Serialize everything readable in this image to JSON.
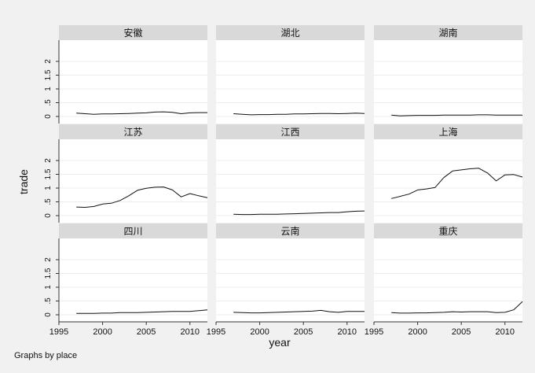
{
  "chart_data": {
    "type": "line",
    "layout": "small-multiples 3x3",
    "xlabel": "year",
    "ylabel": "trade",
    "xlim": [
      1995,
      2012
    ],
    "ylim": [
      0,
      2
    ],
    "xticks": [
      "1995",
      "2000",
      "2005",
      "2010"
    ],
    "yticks": [
      "0",
      ".5",
      "1",
      "1.5",
      "2"
    ],
    "grid": true,
    "line_color": "#111111",
    "strip_color": "#d9d9d9",
    "plot_background": "#ffffff",
    "note": "Graphs by place",
    "x": [
      1997,
      1998,
      1999,
      2000,
      2001,
      2002,
      2003,
      2004,
      2005,
      2006,
      2007,
      2008,
      2009,
      2010,
      2011,
      2012
    ],
    "panels": [
      {
        "name": "安徽",
        "values": [
          0.12,
          0.1,
          0.08,
          0.09,
          0.09,
          0.1,
          0.11,
          0.12,
          0.13,
          0.16,
          0.17,
          0.15,
          0.1,
          0.13,
          0.14,
          0.14
        ]
      },
      {
        "name": "湖北",
        "values": [
          0.1,
          0.08,
          0.06,
          0.07,
          0.07,
          0.08,
          0.08,
          0.09,
          0.09,
          0.1,
          0.11,
          0.11,
          0.1,
          0.11,
          0.12,
          0.11
        ]
      },
      {
        "name": "湖南",
        "values": [
          0.05,
          0.02,
          0.03,
          0.04,
          0.04,
          0.04,
          0.05,
          0.05,
          0.05,
          0.05,
          0.06,
          0.06,
          0.05,
          0.05,
          0.05,
          0.05
        ]
      },
      {
        "name": "江苏",
        "values": [
          0.31,
          0.3,
          0.33,
          0.42,
          0.45,
          0.55,
          0.72,
          0.92,
          0.99,
          1.03,
          1.04,
          0.93,
          0.68,
          0.8,
          0.72,
          0.65
        ]
      },
      {
        "name": "江西",
        "values": [
          0.05,
          0.04,
          0.04,
          0.05,
          0.05,
          0.05,
          0.06,
          0.07,
          0.08,
          0.09,
          0.1,
          0.11,
          0.11,
          0.14,
          0.16,
          0.17
        ]
      },
      {
        "name": "上海",
        "values": [
          0.62,
          0.7,
          0.78,
          0.93,
          0.97,
          1.02,
          1.38,
          1.62,
          1.66,
          1.7,
          1.72,
          1.55,
          1.26,
          1.48,
          1.49,
          1.4
        ]
      },
      {
        "name": "四川",
        "values": [
          0.05,
          0.05,
          0.05,
          0.06,
          0.06,
          0.08,
          0.08,
          0.08,
          0.09,
          0.1,
          0.11,
          0.12,
          0.12,
          0.12,
          0.15,
          0.18
        ]
      },
      {
        "name": "云南",
        "values": [
          0.09,
          0.08,
          0.07,
          0.07,
          0.08,
          0.09,
          0.1,
          0.11,
          0.12,
          0.13,
          0.16,
          0.11,
          0.09,
          0.12,
          0.12,
          0.12
        ]
      },
      {
        "name": "重庆",
        "values": [
          0.08,
          0.06,
          0.06,
          0.07,
          0.07,
          0.08,
          0.09,
          0.11,
          0.1,
          0.11,
          0.11,
          0.11,
          0.08,
          0.09,
          0.18,
          0.48
        ]
      }
    ]
  }
}
